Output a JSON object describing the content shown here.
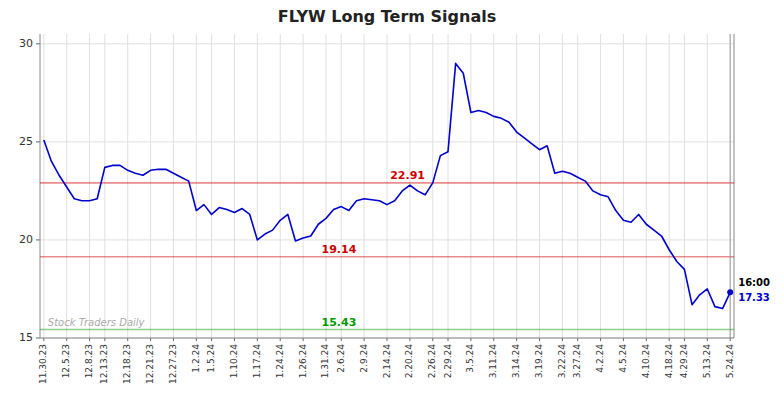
{
  "chart_data": {
    "type": "line",
    "title": "FLYW Long Term Signals",
    "categories": [
      "11.30.23",
      null,
      null,
      "12.5.23",
      null,
      null,
      "12.8.23",
      null,
      "12.13.23",
      null,
      null,
      "12.18.23",
      null,
      null,
      "12.21.23",
      null,
      null,
      "12.27.23",
      null,
      null,
      "1.2.24",
      null,
      "1.5.24",
      null,
      null,
      "1.10.24",
      null,
      null,
      "1.17.24",
      null,
      null,
      "1.24.24",
      null,
      null,
      "1.26.24",
      null,
      null,
      "1.31.24",
      null,
      "2.6.24",
      null,
      null,
      "2.9.24",
      null,
      null,
      "2.14.24",
      null,
      null,
      "2.20.24",
      null,
      null,
      "2.26.24",
      null,
      "2.29.24",
      null,
      null,
      "3.5.24",
      null,
      null,
      "3.11.24",
      null,
      null,
      "3.14.24",
      null,
      null,
      "3.19.24",
      null,
      null,
      "3.22.24",
      null,
      "3.27.24",
      null,
      null,
      "4.2.24",
      null,
      null,
      "4.5.24",
      null,
      null,
      "4.10.24",
      null,
      null,
      "4.18.24",
      null,
      "4.29.24",
      null,
      null,
      "5.13.24",
      null,
      null,
      "5.24.24"
    ],
    "values": [
      25.1,
      24.0,
      23.3,
      22.7,
      22.1,
      22.0,
      22.0,
      22.1,
      23.7,
      23.8,
      23.8,
      23.55,
      23.4,
      23.3,
      23.55,
      23.6,
      23.6,
      23.4,
      23.2,
      23.0,
      21.5,
      21.8,
      21.3,
      21.65,
      21.55,
      21.4,
      21.6,
      21.3,
      20.0,
      20.3,
      20.5,
      21.0,
      21.3,
      19.95,
      20.1,
      20.2,
      20.8,
      21.1,
      21.55,
      21.7,
      21.5,
      22.0,
      22.1,
      22.05,
      22.0,
      21.8,
      22.0,
      22.5,
      22.8,
      22.5,
      22.3,
      22.91,
      24.3,
      24.5,
      29.0,
      28.5,
      26.5,
      26.6,
      26.5,
      26.3,
      26.2,
      26.0,
      25.5,
      25.2,
      24.9,
      24.6,
      24.8,
      23.4,
      23.5,
      23.4,
      23.2,
      23.0,
      22.5,
      22.3,
      22.2,
      21.5,
      21.0,
      20.9,
      21.3,
      20.8,
      20.5,
      20.2,
      19.5,
      18.9,
      18.5,
      16.7,
      17.2,
      17.5,
      16.6,
      16.5,
      17.33
    ],
    "color": "#0000cc",
    "reference_lines": [
      {
        "value": 22.91,
        "label": "22.91",
        "color": "#cc0000"
      },
      {
        "value": 19.14,
        "label": "19.14",
        "color": "#cc0000"
      },
      {
        "value": 15.43,
        "label": "15.43",
        "color": "#009900"
      }
    ],
    "end_label": "16:00",
    "end_value": 17.33,
    "watermark": "Stock Traders Daily",
    "ylim": [
      15.0,
      30.5
    ],
    "yticks": [
      15,
      20,
      25,
      30
    ],
    "grid": true
  }
}
